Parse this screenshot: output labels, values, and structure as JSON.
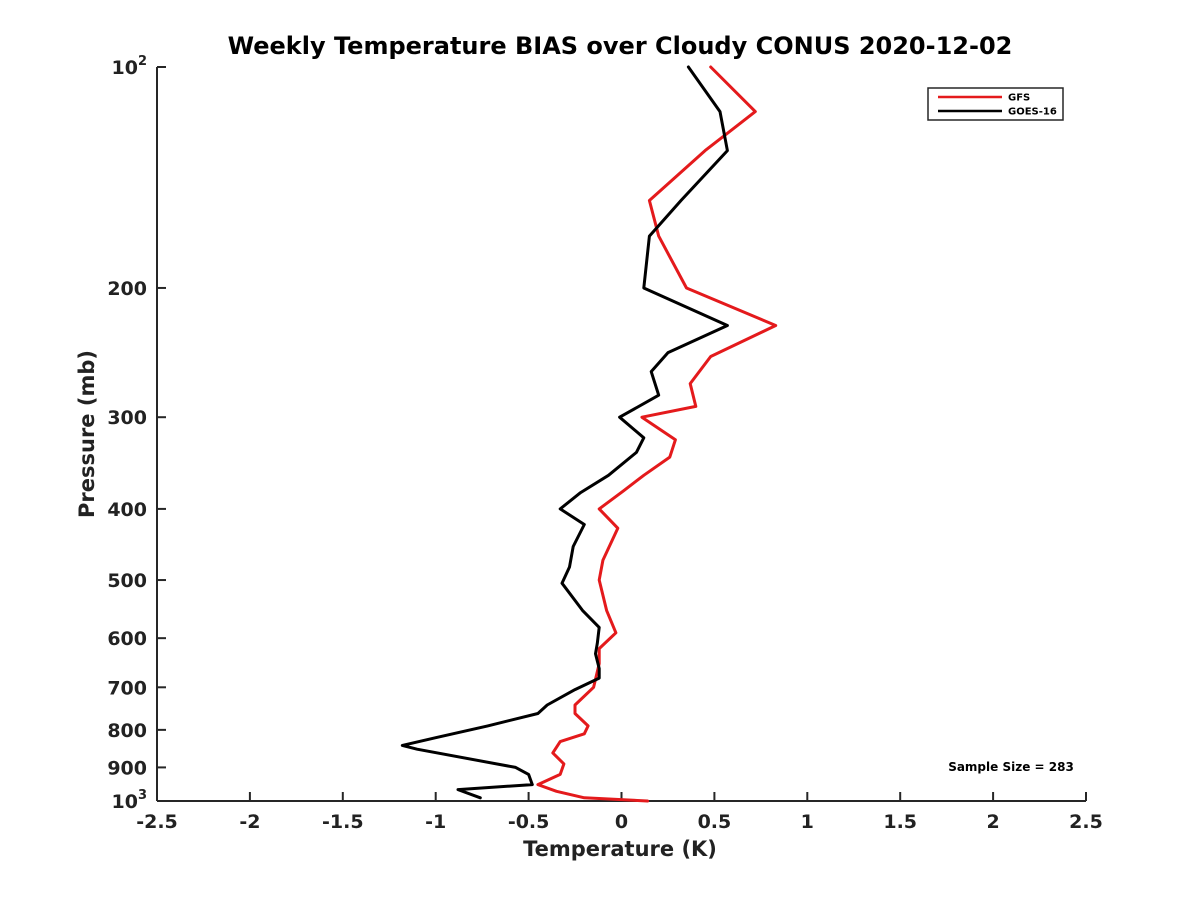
{
  "chart_data": {
    "type": "line",
    "title": "Weekly Temperature BIAS over Cloudy CONUS 2020-12-02",
    "xlabel": "Temperature (K)",
    "ylabel": "Pressure (mb)",
    "xlim": [
      -2.5,
      2.5
    ],
    "ylim": [
      100,
      1000
    ],
    "y_scale": "log",
    "y_reversed": true,
    "grid": false,
    "legend_position": "top-right",
    "x_ticks": [
      "-2.5",
      "-2",
      "-1.5",
      "-1",
      "-0.5",
      "0",
      "0.5",
      "1",
      "1.5",
      "2",
      "2.5"
    ],
    "y_ticks": [
      {
        "value": 100,
        "base": "10",
        "exp": "2"
      },
      {
        "value": 200,
        "label": "200"
      },
      {
        "value": 300,
        "label": "300"
      },
      {
        "value": 400,
        "label": "400"
      },
      {
        "value": 500,
        "label": "500"
      },
      {
        "value": 600,
        "label": "600"
      },
      {
        "value": 700,
        "label": "700"
      },
      {
        "value": 800,
        "label": "800"
      },
      {
        "value": 900,
        "label": "900"
      },
      {
        "value": 1000,
        "base": "10",
        "exp": "3"
      }
    ],
    "annotation": "Sample Size = 283",
    "series": [
      {
        "name": "GFS",
        "color": "#e41a1c",
        "points": [
          [
            0.48,
            100
          ],
          [
            0.72,
            115
          ],
          [
            0.45,
            130
          ],
          [
            0.15,
            152
          ],
          [
            0.2,
            170
          ],
          [
            0.35,
            200
          ],
          [
            0.83,
            225
          ],
          [
            0.48,
            248
          ],
          [
            0.37,
            270
          ],
          [
            0.4,
            290
          ],
          [
            0.11,
            300
          ],
          [
            0.29,
            322
          ],
          [
            0.26,
            340
          ],
          [
            0.12,
            360
          ],
          [
            0.01,
            378
          ],
          [
            -0.12,
            400
          ],
          [
            -0.02,
            425
          ],
          [
            -0.1,
            470
          ],
          [
            -0.12,
            500
          ],
          [
            -0.08,
            550
          ],
          [
            -0.03,
            590
          ],
          [
            -0.12,
            620
          ],
          [
            -0.12,
            650
          ],
          [
            -0.15,
            700
          ],
          [
            -0.25,
            740
          ],
          [
            -0.25,
            760
          ],
          [
            -0.18,
            790
          ],
          [
            -0.2,
            810
          ],
          [
            -0.33,
            830
          ],
          [
            -0.37,
            860
          ],
          [
            -0.31,
            890
          ],
          [
            -0.33,
            920
          ],
          [
            -0.45,
            950
          ],
          [
            -0.35,
            970
          ],
          [
            -0.2,
            990
          ],
          [
            0.14,
            1000
          ]
        ]
      },
      {
        "name": "GOES-16",
        "color": "#000000",
        "points": [
          [
            0.36,
            100
          ],
          [
            0.53,
            115
          ],
          [
            0.57,
            130
          ],
          [
            0.32,
            152
          ],
          [
            0.15,
            170
          ],
          [
            0.12,
            200
          ],
          [
            0.57,
            225
          ],
          [
            0.25,
            245
          ],
          [
            0.16,
            260
          ],
          [
            0.2,
            280
          ],
          [
            -0.01,
            300
          ],
          [
            0.12,
            320
          ],
          [
            0.08,
            335
          ],
          [
            -0.07,
            360
          ],
          [
            -0.22,
            380
          ],
          [
            -0.33,
            400
          ],
          [
            -0.2,
            420
          ],
          [
            -0.26,
            450
          ],
          [
            -0.28,
            480
          ],
          [
            -0.32,
            505
          ],
          [
            -0.21,
            550
          ],
          [
            -0.12,
            580
          ],
          [
            -0.13,
            610
          ],
          [
            -0.14,
            630
          ],
          [
            -0.12,
            660
          ],
          [
            -0.12,
            680
          ],
          [
            -0.25,
            705
          ],
          [
            -0.4,
            740
          ],
          [
            -0.45,
            760
          ],
          [
            -0.72,
            790
          ],
          [
            -1.0,
            820
          ],
          [
            -1.18,
            840
          ],
          [
            -1.1,
            850
          ],
          [
            -0.57,
            900
          ],
          [
            -0.5,
            920
          ],
          [
            -0.48,
            950
          ],
          [
            -0.88,
            965
          ],
          [
            -0.76,
            990
          ]
        ]
      }
    ]
  }
}
